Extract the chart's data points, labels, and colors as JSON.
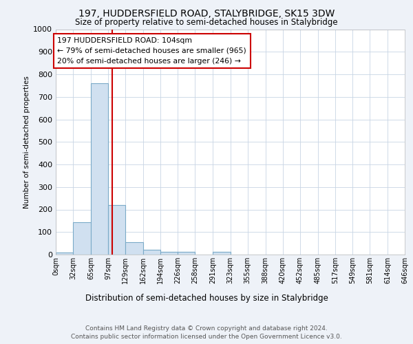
{
  "title": "197, HUDDERSFIELD ROAD, STALYBRIDGE, SK15 3DW",
  "subtitle": "Size of property relative to semi-detached houses in Stalybridge",
  "xlabel": "Distribution of semi-detached houses by size in Stalybridge",
  "ylabel": "Number of semi-detached properties",
  "bin_edges": [
    0,
    32,
    65,
    97,
    129,
    162,
    194,
    226,
    258,
    291,
    323,
    355,
    388,
    420,
    452,
    485,
    517,
    549,
    581,
    614,
    646
  ],
  "bar_heights": [
    8,
    145,
    760,
    220,
    55,
    22,
    12,
    12,
    0,
    12,
    0,
    0,
    0,
    0,
    0,
    0,
    0,
    0,
    0,
    0
  ],
  "bar_color": "#d0e0f0",
  "bar_edgecolor": "#7aaac8",
  "bar_linewidth": 0.8,
  "grid_color": "#c8d4e4",
  "property_size": 104,
  "red_line_color": "#cc0000",
  "annotation_line1": "197 HUDDERSFIELD ROAD: 104sqm",
  "annotation_line2": "← 79% of semi-detached houses are smaller (965)",
  "annotation_line3": "20% of semi-detached houses are larger (246) →",
  "annotation_box_color": "#ffffff",
  "annotation_box_edgecolor": "#cc0000",
  "ylim": [
    0,
    1000
  ],
  "yticks": [
    0,
    100,
    200,
    300,
    400,
    500,
    600,
    700,
    800,
    900,
    1000
  ],
  "footer_line1": "Contains HM Land Registry data © Crown copyright and database right 2024.",
  "footer_line2": "Contains public sector information licensed under the Open Government Licence v3.0.",
  "bg_color": "#eef2f8",
  "plot_bg_color": "#ffffff"
}
